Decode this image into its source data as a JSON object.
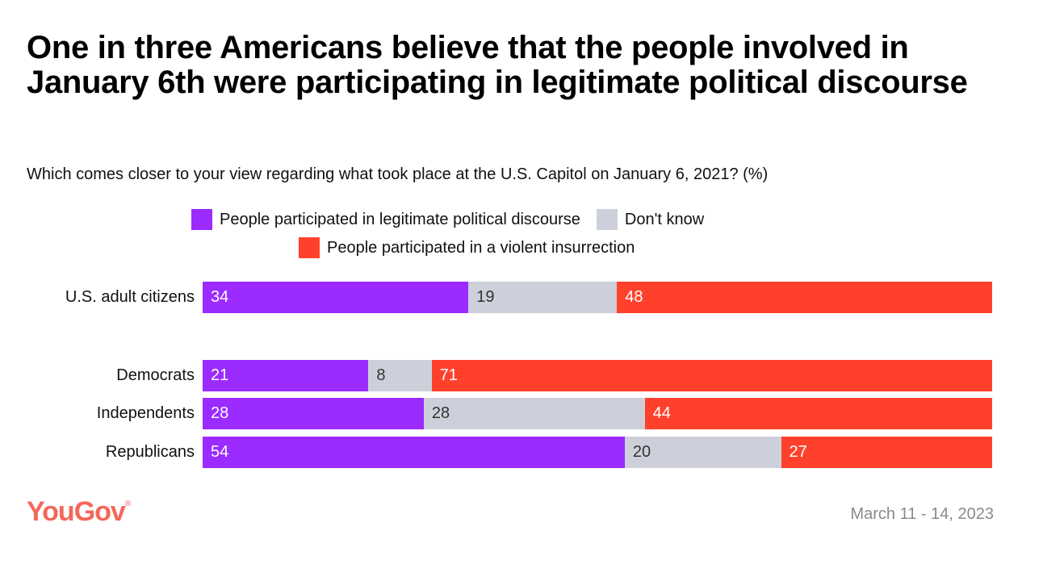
{
  "colors": {
    "legit": "#9b2bff",
    "dont_know": "#cdd0da",
    "violent": "#ff412c",
    "logo": "#f4675a"
  },
  "title": "One in three Americans believe that the people involved in January 6th were participating in legitimate political discourse",
  "subtitle": "Which comes closer to your view regarding what took place at the U.S. Capitol on January 6, 2021? (%)",
  "footer": {
    "logo": "YouGov",
    "date": "March 11 - 14, 2023"
  },
  "chart_data": {
    "type": "bar",
    "orientation": "horizontal-stacked",
    "title": "One in three Americans believe that the people involved in January 6th were participating in legitimate political discourse",
    "categories": [
      "U.S. adult citizens",
      "Democrats",
      "Independents",
      "Republicans"
    ],
    "series": [
      {
        "name": "People participated in legitimate political discourse",
        "values": [
          34,
          21,
          28,
          54
        ]
      },
      {
        "name": "Don't know",
        "values": [
          19,
          8,
          28,
          20
        ]
      },
      {
        "name": "People participated in a violent insurrection",
        "values": [
          48,
          71,
          44,
          27
        ]
      }
    ],
    "legend_placement": "top-center",
    "grid": false
  }
}
